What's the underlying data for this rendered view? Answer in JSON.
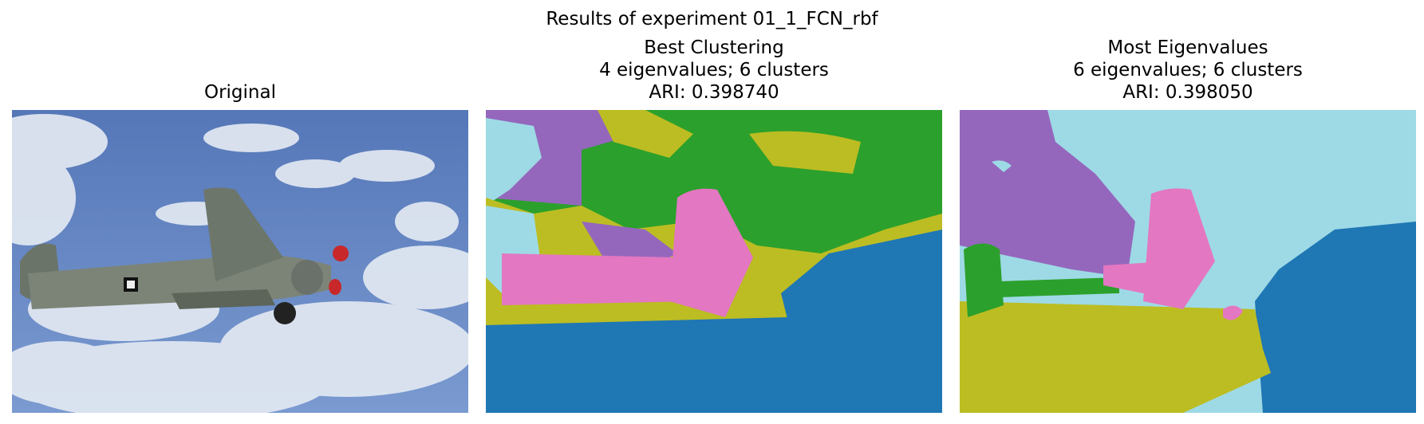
{
  "figure": {
    "suptitle": "Results of experiment 01_1_FCN_rbf"
  },
  "panels": [
    {
      "title_lines": [
        "Original"
      ]
    },
    {
      "title_lines": [
        "Best Clustering",
        "4 eigenvalues; 6 clusters",
        "ARI: 0.398740"
      ]
    },
    {
      "title_lines": [
        "Most Eigenvalues",
        "6 eigenvalues; 6 clusters",
        "ARI: 0.398050"
      ]
    }
  ],
  "colors": {
    "blue": "#1f77b4",
    "green": "#2ca02c",
    "purple": "#9467bd",
    "pink": "#e377c2",
    "olive": "#bcbd22",
    "cyan": "#9edae5",
    "sky": "#5a7fc0"
  }
}
